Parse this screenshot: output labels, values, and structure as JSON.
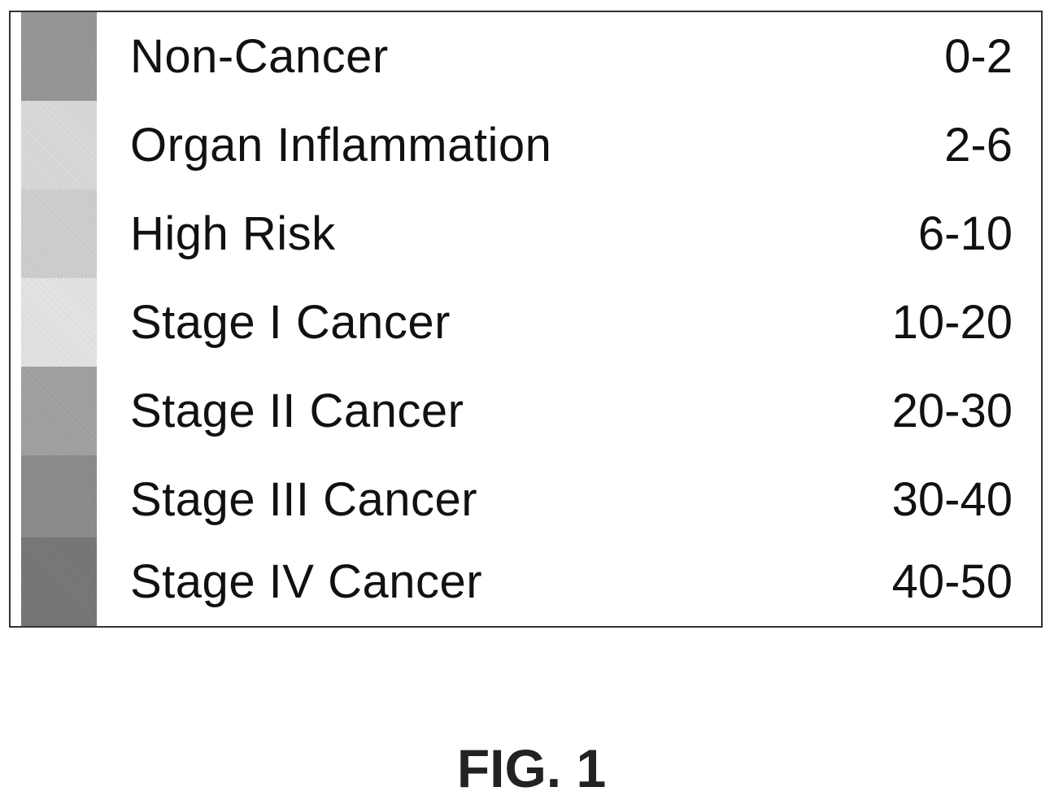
{
  "legend": {
    "rows": [
      {
        "label": "Non-Cancer",
        "range": "0-2",
        "color": "#9a9a9a"
      },
      {
        "label": "Organ Inflammation",
        "range": "2-6",
        "color": "#dedede"
      },
      {
        "label": "High Risk",
        "range": "6-10",
        "color": "#d3d3d3"
      },
      {
        "label": "Stage I Cancer",
        "range": "10-20",
        "color": "#e8e8e8"
      },
      {
        "label": "Stage II Cancer",
        "range": "20-30",
        "color": "#a5a5a5"
      },
      {
        "label": "Stage III Cancer",
        "range": "30-40",
        "color": "#8f8f8f"
      },
      {
        "label": "Stage IV Cancer",
        "range": "40-50",
        "color": "#7a7a7a"
      }
    ]
  },
  "caption": "FIG. 1"
}
